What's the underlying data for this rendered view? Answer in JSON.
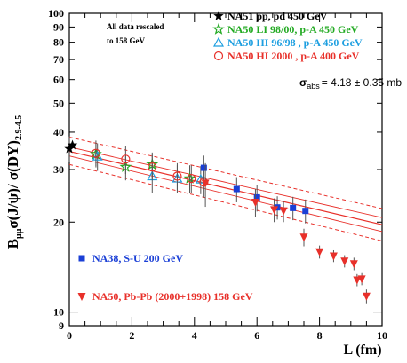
{
  "chart_data": {
    "type": "scatter",
    "ylabel_main": "B",
    "ylabel_sub1": "μμ",
    "ylabel_mid": "σ(J/ψ)/ σ(DY)",
    "ylabel_sub2": "2.9-4.5",
    "xlabel": "L (fm)",
    "xlim": [
      0,
      10
    ],
    "ylim": [
      9,
      100
    ],
    "yscale": "log",
    "x_ticks": [
      "0",
      "2",
      "4",
      "6",
      "8",
      "10"
    ],
    "y_ticks": [
      "9",
      "10",
      "20",
      "30",
      "40",
      "50",
      "60",
      "70",
      "80",
      "90",
      "100"
    ],
    "note_line1": "All data rescaled",
    "note_line2": "to 158 GeV",
    "sigma_symbol": "σ",
    "sigma_sub": "abs",
    "sigma_value": "= 4.18 ± 0.35 mb",
    "legend": [
      {
        "label": "NA51 pp, pd 450 GeV",
        "color": "#000000",
        "marker": "star-filled"
      },
      {
        "label": "NA50 LI 98/00, p-A 450 GeV",
        "color": "#22aa22",
        "marker": "star-open"
      },
      {
        "label": "NA50 HI 96/98 , p-A 450 GeV",
        "color": "#1e9fe0",
        "marker": "triangle-open"
      },
      {
        "label": "NA50 HI 2000 , p-A 400 GeV",
        "color": "#e8302a",
        "marker": "circle-open"
      }
    ],
    "legend_bottom": [
      {
        "label": "NA38, S-U 200 GeV",
        "color": "#1a3fd6",
        "marker": "square"
      },
      {
        "label": "NA50, Pb-Pb (2000+1998) 158 GeV",
        "color": "#e8302a",
        "marker": "triangle-down"
      }
    ],
    "band": {
      "center": [
        [
          0,
          34.5
        ],
        [
          10,
          19.6
        ]
      ],
      "solid_upper": [
        [
          0,
          35.7
        ],
        [
          10,
          20.7
        ]
      ],
      "solid_lower": [
        [
          0,
          33.3
        ],
        [
          10,
          18.6
        ]
      ],
      "dashed_upper": [
        [
          0,
          38.5
        ],
        [
          10,
          22.2
        ]
      ],
      "dashed_lower": [
        [
          0,
          31.2
        ],
        [
          10,
          17.3
        ]
      ],
      "color": "#e8302a"
    },
    "series": [
      {
        "name": "NA51 pp, pd 450 GeV",
        "marker": "star-filled",
        "color": "#000000",
        "points": [
          [
            0.0,
            35.2,
            3.5
          ],
          [
            0.1,
            36.2,
            0
          ]
        ]
      },
      {
        "name": "NA50 LI 98/00, p-A 450 GeV",
        "marker": "star-open",
        "color": "#22aa22",
        "points": [
          [
            0.85,
            33.8,
            3.0
          ],
          [
            1.8,
            30.6,
            3.0
          ],
          [
            2.65,
            31.2,
            3.0
          ],
          [
            3.85,
            28.0,
            3.0
          ]
        ]
      },
      {
        "name": "NA50 HI 96/98 , p-A 450 GeV",
        "marker": "triangle-open",
        "color": "#1e9fe0",
        "points": [
          [
            0.9,
            33.2,
            3.5
          ],
          [
            2.65,
            28.5,
            3.5
          ],
          [
            3.45,
            28.0,
            3.0
          ],
          [
            4.2,
            27.8,
            3.0
          ]
        ]
      },
      {
        "name": "NA50 HI 2000 , p-A 400 GeV",
        "marker": "circle-open",
        "color": "#e8302a",
        "points": [
          [
            0.85,
            34.0,
            3.5
          ],
          [
            1.8,
            32.5,
            3.5
          ],
          [
            2.65,
            30.6,
            3.0
          ],
          [
            3.45,
            28.5,
            3.0
          ],
          [
            3.9,
            28.0,
            3.0
          ],
          [
            4.3,
            27.2,
            3.0
          ]
        ]
      },
      {
        "name": "NA38, S-U 200 GeV",
        "marker": "square",
        "color": "#1a3fd6",
        "points": [
          [
            4.3,
            30.4,
            3.0
          ],
          [
            5.35,
            25.8,
            2.5
          ],
          [
            6.0,
            24.2,
            2.5
          ],
          [
            6.65,
            22.4,
            2.0
          ],
          [
            7.15,
            22.3,
            2.0
          ],
          [
            7.55,
            21.8,
            2.0
          ]
        ]
      },
      {
        "name": "NA50, Pb-Pb (2000+1998) 158 GeV",
        "marker": "triangle-down",
        "color": "#e8302a",
        "points": [
          [
            4.35,
            27.0,
            4.5
          ],
          [
            5.95,
            23.3,
            2.5
          ],
          [
            6.55,
            22.0,
            2.0
          ],
          [
            6.85,
            21.8,
            1.8
          ],
          [
            7.5,
            17.8,
            1.2
          ],
          [
            8.0,
            15.9,
            0.8
          ],
          [
            8.45,
            15.4,
            0.7
          ],
          [
            8.8,
            14.8,
            0.7
          ],
          [
            9.1,
            14.5,
            0.7
          ],
          [
            9.2,
            12.8,
            0.6
          ],
          [
            9.35,
            12.9,
            0.6
          ],
          [
            9.5,
            11.3,
            0.6
          ]
        ]
      }
    ]
  }
}
